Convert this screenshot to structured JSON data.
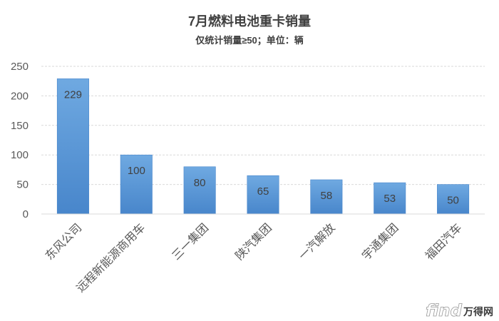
{
  "chart_data": {
    "type": "bar",
    "title": "7月燃料电池重卡销量",
    "subtitle": "仅统计销量≥50；单位：辆",
    "categories": [
      "东风公司",
      "远程新能源商用车",
      "三一集团",
      "陕汽集团",
      "一汽解放",
      "宇通集团",
      "福田汽车"
    ],
    "values": [
      229,
      100,
      80,
      65,
      58,
      53,
      50
    ],
    "ylim": [
      0,
      250
    ],
    "yticks": [
      0,
      50,
      100,
      150,
      200,
      250
    ],
    "grid": true,
    "data_labels": true
  },
  "colors": {
    "bar_top": "#6fa9e1",
    "bar_bottom": "#4886cb",
    "gridline": "#d9d9d9",
    "axis_text": "#595959",
    "title_text": "#404040"
  },
  "watermark": {
    "logo_latin": "find",
    "logo_cjk": "万得网"
  }
}
